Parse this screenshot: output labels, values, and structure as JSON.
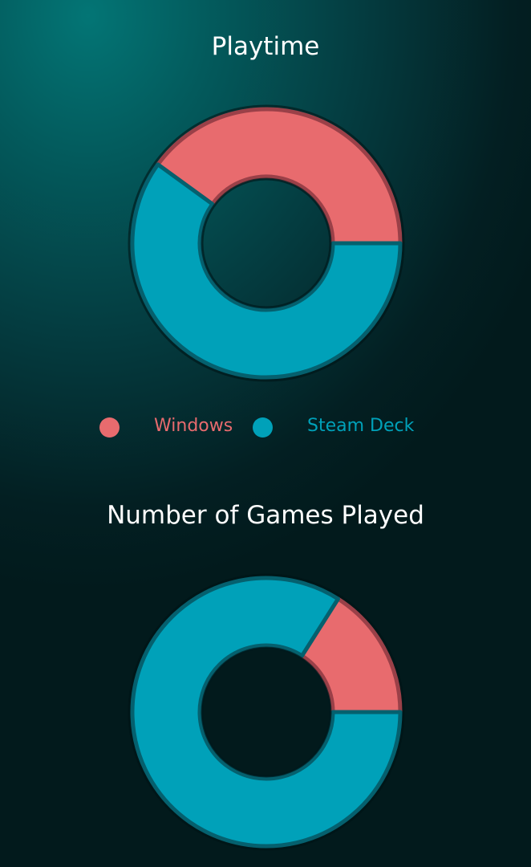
{
  "chart_data": [
    {
      "type": "pie",
      "donut": true,
      "title": "Playtime",
      "categories": [
        "Windows",
        "Steam Deck"
      ],
      "values": [
        40,
        60
      ],
      "unit": "percent"
    },
    {
      "type": "pie",
      "donut": true,
      "title": "Number of Games Played",
      "categories": [
        "Windows",
        "Steam Deck"
      ],
      "values": [
        16,
        84
      ],
      "unit": "percent"
    }
  ],
  "legend": {
    "items": [
      {
        "label": "Windows",
        "color": "#e86b6e"
      },
      {
        "label": "Steam Deck",
        "color": "#00a1b9"
      }
    ],
    "placement": "below first chart"
  },
  "colors": {
    "windows": "#e86b6e",
    "steam_deck": "#00a1b9",
    "windows_stroke": "#9a4048",
    "steam_deck_stroke": "#05606e",
    "title": "#ffffff"
  }
}
